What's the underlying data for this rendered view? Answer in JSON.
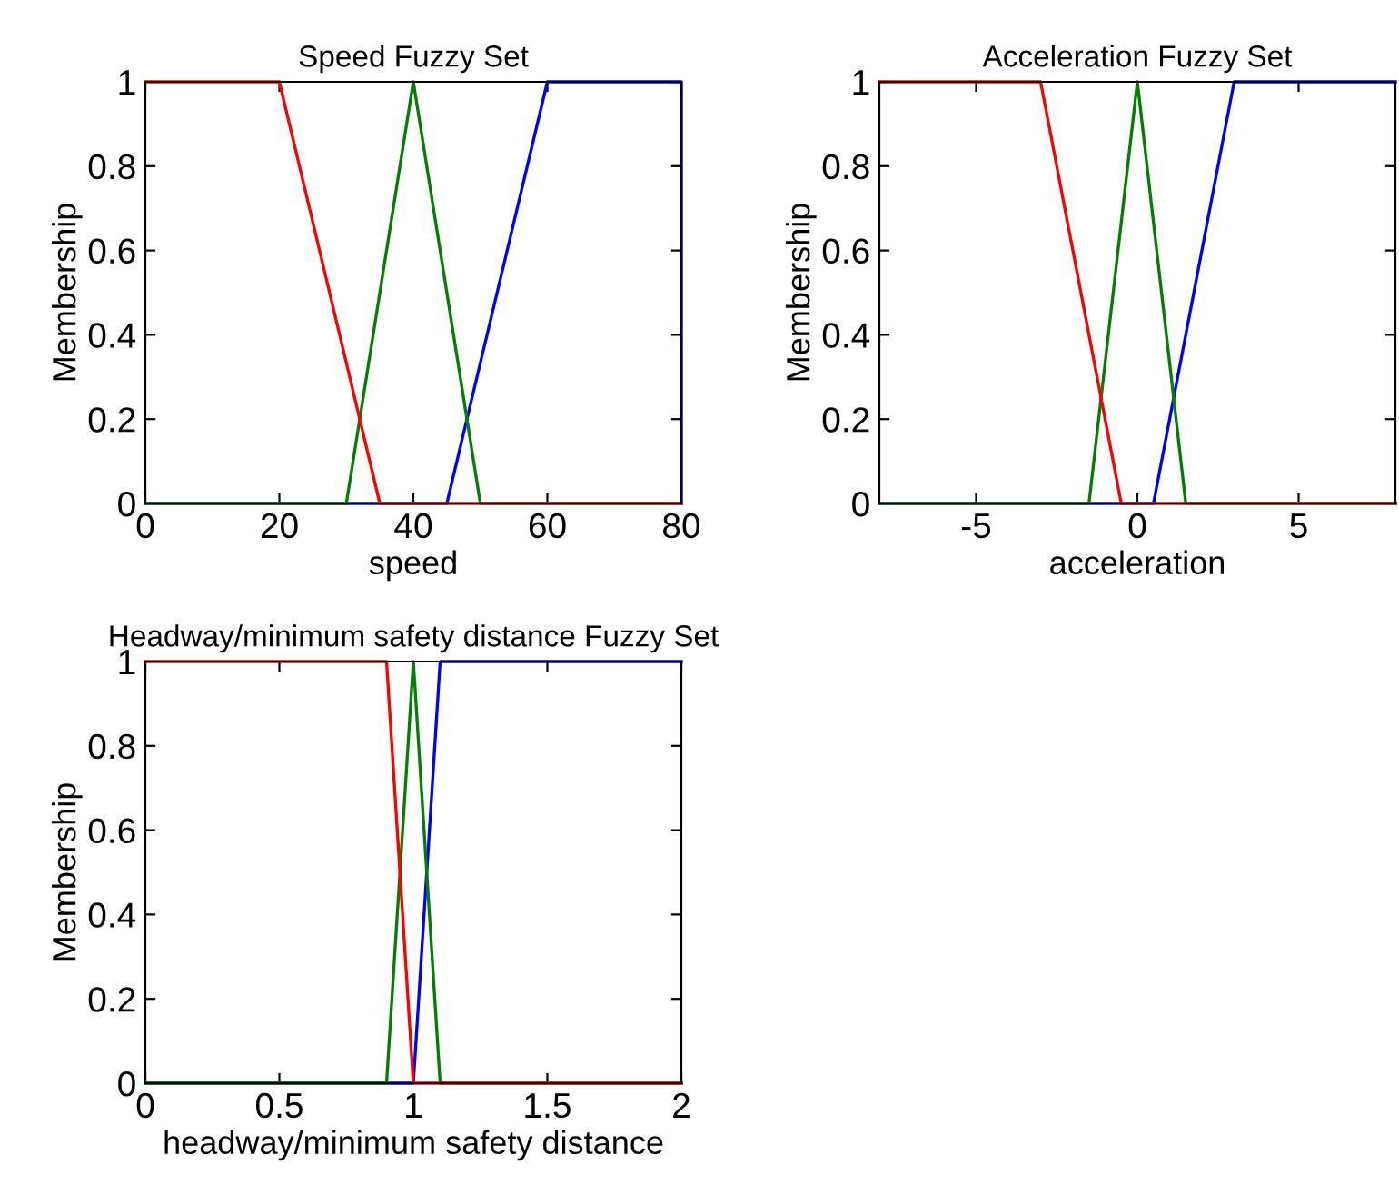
{
  "chart_data": [
    {
      "type": "line",
      "title": "Speed Fuzzy Set",
      "xlabel": "speed",
      "ylabel": "Membership",
      "xlim": [
        0,
        80
      ],
      "ylim": [
        0,
        1
      ],
      "xticks": [
        0,
        20,
        40,
        60,
        80
      ],
      "yticks": [
        0,
        0.2,
        0.4,
        0.6,
        0.8,
        1
      ],
      "grid": false,
      "legend": false,
      "series": [
        {
          "color": "#0000ff",
          "x": [
            0,
            45,
            60,
            80,
            80
          ],
          "values": [
            0,
            0,
            1,
            1,
            0
          ]
        },
        {
          "color": "#008000",
          "x": [
            0,
            30,
            40,
            50,
            80
          ],
          "values": [
            0,
            0,
            1,
            0,
            0
          ]
        },
        {
          "color": "#ff0000",
          "x": [
            0,
            20,
            35,
            80
          ],
          "values": [
            1,
            1,
            0,
            0
          ]
        }
      ]
    },
    {
      "type": "line",
      "title": "Acceleration Fuzzy Set",
      "xlabel": "acceleration",
      "ylabel": "Membership",
      "xlim": [
        -8,
        8
      ],
      "ylim": [
        0,
        1
      ],
      "xticks": [
        -5,
        0,
        5
      ],
      "yticks": [
        0,
        0.2,
        0.4,
        0.6,
        0.8,
        1
      ],
      "grid": false,
      "legend": false,
      "series": [
        {
          "color": "#0000ff",
          "x": [
            -8,
            0.5,
            3,
            8
          ],
          "values": [
            0,
            0,
            1,
            1
          ]
        },
        {
          "color": "#008000",
          "x": [
            -8,
            -1.5,
            0,
            1.5,
            8
          ],
          "values": [
            0,
            0,
            1,
            0,
            0
          ]
        },
        {
          "color": "#ff0000",
          "x": [
            -8,
            -3,
            -0.5,
            8
          ],
          "values": [
            1,
            1,
            0,
            0
          ]
        }
      ]
    },
    {
      "type": "line",
      "title": "Headway/minimum safety distance Fuzzy Set",
      "xlabel": "headway/minimum safety distance",
      "ylabel": "Membership",
      "xlim": [
        0,
        2
      ],
      "ylim": [
        0,
        1
      ],
      "xticks": [
        0,
        0.5,
        1,
        1.5,
        2
      ],
      "yticks": [
        0,
        0.2,
        0.4,
        0.6,
        0.8,
        1
      ],
      "grid": false,
      "legend": false,
      "series": [
        {
          "color": "#0000ff",
          "x": [
            0,
            1.0,
            1.1,
            2
          ],
          "values": [
            0,
            0,
            1,
            1
          ]
        },
        {
          "color": "#008000",
          "x": [
            0,
            0.9,
            1.0,
            1.1,
            2
          ],
          "values": [
            0,
            0,
            1,
            0,
            0
          ]
        },
        {
          "color": "#ff0000",
          "x": [
            0,
            0.9,
            1.0,
            2
          ],
          "values": [
            1,
            1,
            0,
            0
          ]
        }
      ]
    }
  ]
}
